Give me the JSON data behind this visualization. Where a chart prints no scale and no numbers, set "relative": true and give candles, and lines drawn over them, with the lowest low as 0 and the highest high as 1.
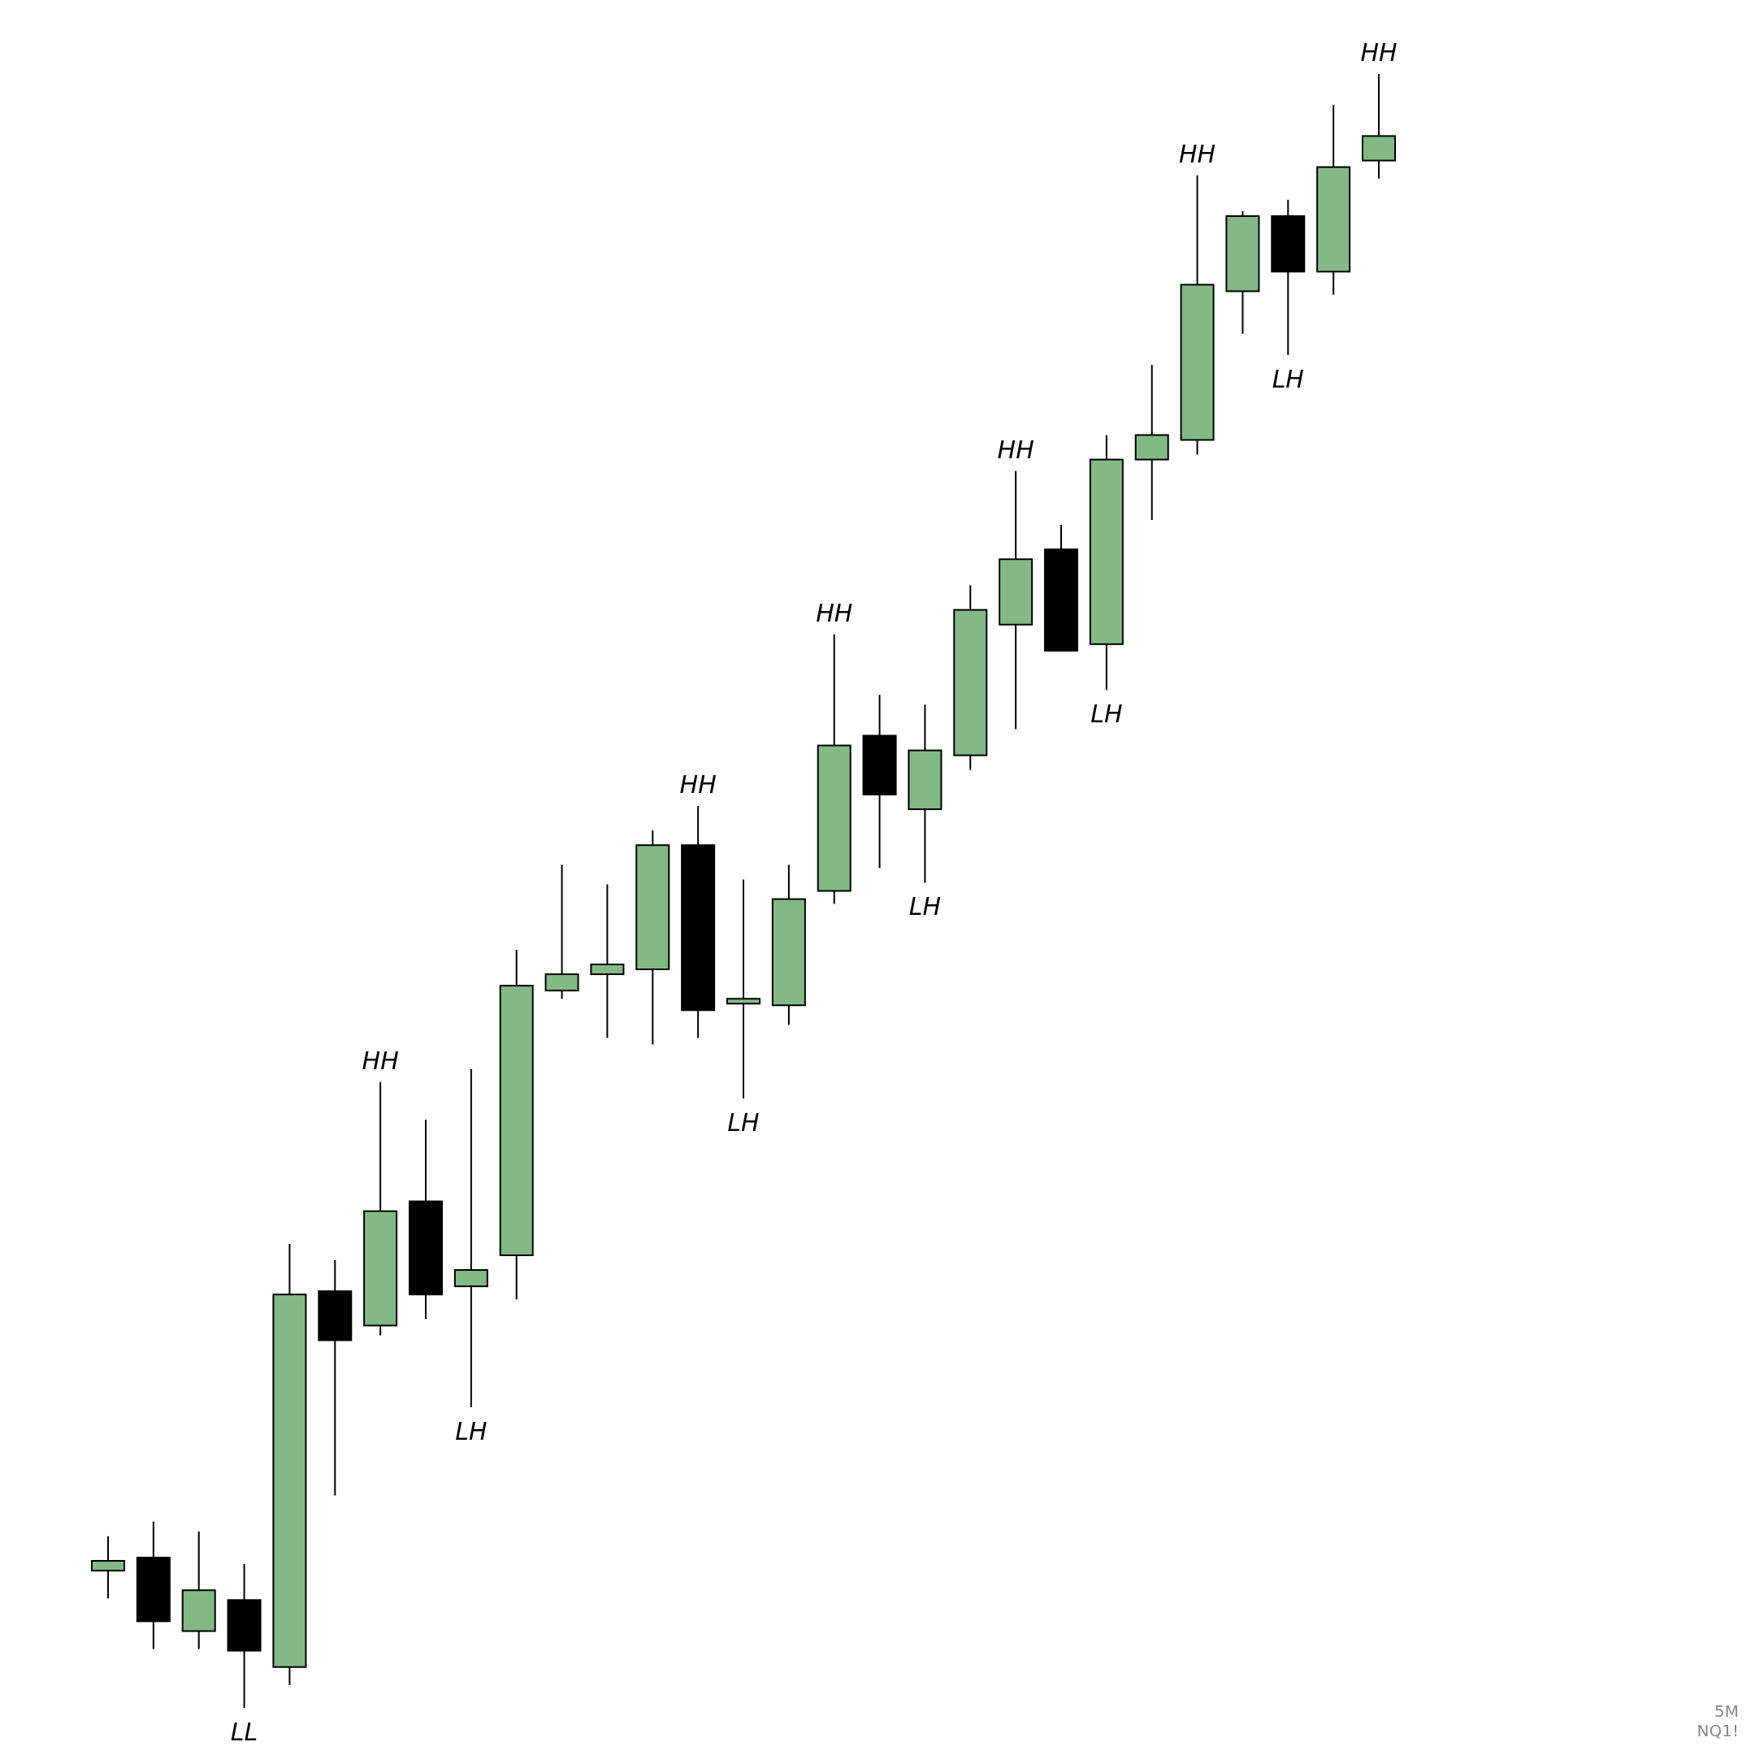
{
  "chart_data": {
    "type": "candlestick",
    "relative": true,
    "categories": [
      null,
      null,
      null,
      null,
      null,
      null,
      null,
      null,
      null,
      null,
      null,
      null,
      null,
      null,
      null,
      null,
      null,
      null,
      null,
      null,
      null,
      null,
      null,
      null,
      null,
      null,
      null,
      null,
      null
    ],
    "ohlc": [
      [
        0.084,
        0.105,
        0.067,
        0.09
      ],
      [
        0.092,
        0.114,
        0.036,
        0.053
      ],
      [
        0.047,
        0.108,
        0.036,
        0.072
      ],
      [
        0.066,
        0.088,
        0,
        0.035
      ],
      [
        0.025,
        0.284,
        0.014,
        0.253
      ],
      [
        0.255,
        0.274,
        0.13,
        0.225
      ],
      [
        0.234,
        0.383,
        0.228,
        0.304
      ],
      [
        0.31,
        0.36,
        0.238,
        0.253
      ],
      [
        0.258,
        0.391,
        0.184,
        0.268
      ],
      [
        0.277,
        0.464,
        0.25,
        0.442
      ],
      [
        0.439,
        0.516,
        0.434,
        0.449
      ],
      [
        0.449,
        0.504,
        0.41,
        0.455
      ],
      [
        0.452,
        0.537,
        0.406,
        0.528
      ],
      [
        0.528,
        0.552,
        0.41,
        0.427
      ],
      [
        0.431,
        0.507,
        0.373,
        0.434
      ],
      [
        0.43,
        0.516,
        0.418,
        0.495
      ],
      [
        0.5,
        0.657,
        0.492,
        0.589
      ],
      [
        0.595,
        0.62,
        0.514,
        0.559
      ],
      [
        0.55,
        0.614,
        0.505,
        0.586
      ],
      [
        0.583,
        0.687,
        0.574,
        0.672
      ],
      [
        0.663,
        0.757,
        0.599,
        0.703
      ],
      [
        0.709,
        0.724,
        0.647,
        0.647
      ],
      [
        0.651,
        0.779,
        0.623,
        0.764
      ],
      [
        0.764,
        0.822,
        0.727,
        0.779
      ],
      [
        0.776,
        0.938,
        0.767,
        0.871
      ],
      [
        0.867,
        0.916,
        0.841,
        0.913
      ],
      [
        0.913,
        0.923,
        0.828,
        0.879
      ],
      [
        0.879,
        0.981,
        0.865,
        0.943
      ],
      [
        0.947,
        1.0,
        0.936,
        0.962
      ]
    ],
    "colors": [
      "#83b985",
      "#000000",
      "#83b985",
      "#000000",
      "#83b985",
      "#000000",
      "#83b985",
      "#000000",
      "#83b985",
      "#83b985",
      "#83b985",
      "#83b985",
      "#83b985",
      "#000000",
      "#83b985",
      "#83b985",
      "#83b985",
      "#000000",
      "#83b985",
      "#83b985",
      "#83b985",
      "#000000",
      "#83b985",
      "#83b985",
      "#83b985",
      "#83b985",
      "#000000",
      "#83b985",
      "#83b985"
    ],
    "annotations": [
      {
        "text": "LL",
        "y": 0
      },
      {
        "text": "HH",
        "y": 0.383
      },
      {
        "text": "LH",
        "y": 0.184
      },
      {
        "text": "HH",
        "y": 0.552
      },
      {
        "text": "LH",
        "y": 0.373
      },
      {
        "text": "HH",
        "y": 0.657
      },
      {
        "text": "LH",
        "y": 0.505
      },
      {
        "text": "HH",
        "y": 0.757
      },
      {
        "text": "LH",
        "y": 0.623
      },
      {
        "text": "HH",
        "y": 0.938
      },
      {
        "text": "LH",
        "y": 0.828
      },
      {
        "text": "HH",
        "y": 1.0
      },
      "5M",
      "NQ1!"
    ]
  }
}
